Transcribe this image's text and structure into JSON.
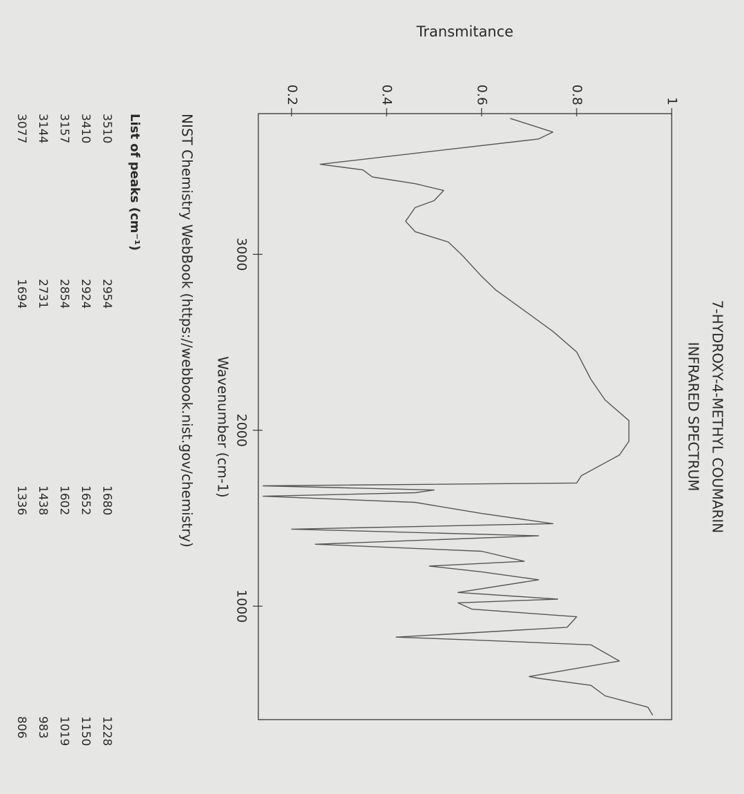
{
  "chart_data": {
    "type": "line",
    "title": "7-HYDROXY-4-METHYL COUMARIN",
    "subtitle": "INFRARED SPECTRUM",
    "xlabel": "Wavenumber (cm-1)",
    "ylabel": "Transmitance",
    "color": "#555555",
    "x": [
      3773,
      3695,
      3656,
      3512,
      3480,
      3440,
      3402,
      3363,
      3305,
      3266,
      3188,
      3129,
      3070,
      2992,
      2875,
      2797,
      2680,
      2562,
      2445,
      2289,
      2172,
      2055,
      1937,
      1859,
      1742,
      1700,
      1684,
      1660,
      1645,
      1625,
      1590,
      1527,
      1469,
      1438,
      1400,
      1352,
      1312,
      1255,
      1228,
      1195,
      1150,
      1078,
      1040,
      1019,
      983,
      940,
      880,
      824,
      806,
      780,
      688,
      600,
      590,
      550,
      490,
      426,
      380
    ],
    "values": [
      0.66,
      0.75,
      0.72,
      0.26,
      0.35,
      0.37,
      0.46,
      0.52,
      0.5,
      0.46,
      0.44,
      0.46,
      0.53,
      0.56,
      0.6,
      0.63,
      0.69,
      0.75,
      0.8,
      0.83,
      0.86,
      0.91,
      0.91,
      0.89,
      0.81,
      0.8,
      0.14,
      0.5,
      0.46,
      0.14,
      0.46,
      0.6,
      0.75,
      0.2,
      0.72,
      0.25,
      0.6,
      0.69,
      0.49,
      0.6,
      0.72,
      0.55,
      0.76,
      0.55,
      0.58,
      0.8,
      0.78,
      0.42,
      0.6,
      0.83,
      0.89,
      0.7,
      0.72,
      0.83,
      0.86,
      0.95,
      0.96
    ],
    "xlim": [
      3800,
      355
    ],
    "ylim": [
      0.13,
      1
    ],
    "xticks": [
      3000,
      2000,
      1000
    ],
    "yticks": [
      0.2,
      0.4,
      0.6,
      0.8,
      1
    ]
  },
  "source": "NIST Chemistry WebBook (https://webbook.nist.gov/chemistry)",
  "peaks": {
    "title": "List of peaks (cm⁻¹)",
    "rows": [
      [
        "3510",
        "2954",
        "1680",
        "1228"
      ],
      [
        "3410",
        "2924",
        "1652",
        "1150"
      ],
      [
        "3157",
        "2854",
        "1602",
        "1019"
      ],
      [
        "3144",
        "2731",
        "1438",
        "983"
      ],
      [
        "3077",
        "1694",
        "1336",
        "806"
      ]
    ]
  }
}
